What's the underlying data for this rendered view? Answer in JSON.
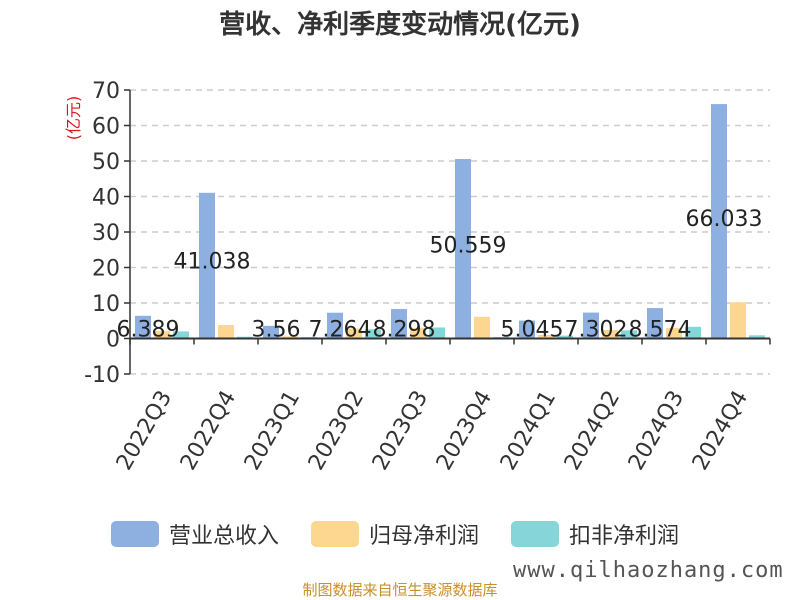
{
  "chart_data": {
    "type": "bar",
    "title": "营收、净利季度变动情况(亿元)",
    "ylabel": "(亿元)",
    "ylim": [
      -10,
      70
    ],
    "yticks": [
      -10,
      0,
      10,
      20,
      30,
      40,
      50,
      60,
      70
    ],
    "grid": true,
    "legend_position": "bottom",
    "categories": [
      "2022Q3",
      "2022Q4",
      "2023Q1",
      "2023Q2",
      "2023Q3",
      "2023Q4",
      "2024Q1",
      "2024Q2",
      "2024Q3",
      "2024Q4"
    ],
    "series": [
      {
        "name": "营业总收入",
        "color": "#8eb0e0",
        "values": [
          6.389,
          41.038,
          3.56,
          7.264,
          8.298,
          50.559,
          5.045,
          7.302,
          8.574,
          66.033
        ]
      },
      {
        "name": "归母净利润",
        "color": "#fdd68f",
        "values": [
          2.1,
          3.8,
          0.6,
          2.8,
          3.0,
          6.1,
          1.0,
          2.4,
          3.0,
          10.2
        ]
      },
      {
        "name": "扣非净利润",
        "color": "#86d5d8",
        "values": [
          2.0,
          0.5,
          0.4,
          2.6,
          3.1,
          0.4,
          0.8,
          2.3,
          3.3,
          0.9
        ]
      }
    ],
    "data_labels": [
      "6.389",
      "41.038",
      "3.56",
      "7.264",
      "8.298",
      "50.559",
      "5.045",
      "7.302",
      "8.574",
      "66.033"
    ]
  },
  "source_note": "制图数据来自恒生聚源数据库",
  "watermark": "www.qilhaozhang.com"
}
